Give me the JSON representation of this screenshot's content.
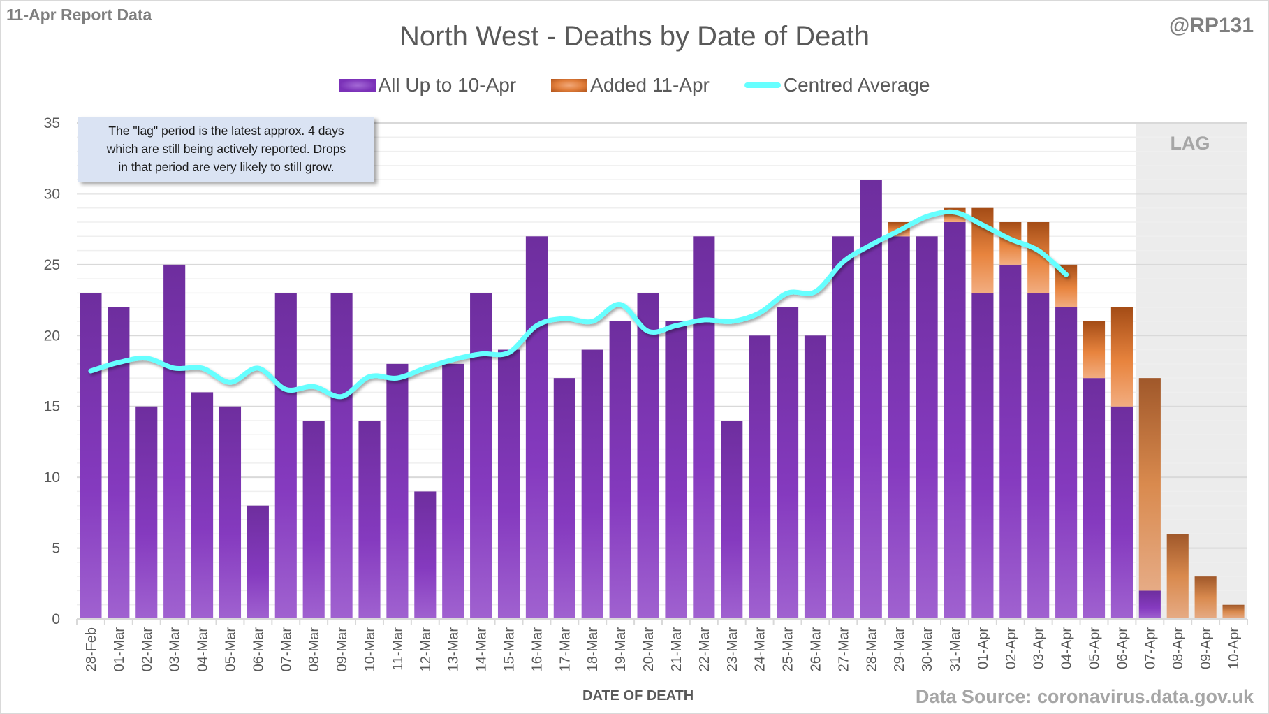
{
  "header": {
    "report_label": "11-Apr Report Data",
    "handle": "@RP131",
    "title": "North West - Deaths by Date of Death"
  },
  "legend": [
    {
      "label": "All Up to 10-Apr",
      "icon": "purple-bar-swatch"
    },
    {
      "label": "Added 11-Apr",
      "icon": "orange-bar-swatch"
    },
    {
      "label": "Centred Average",
      "icon": "cyan-line-swatch"
    }
  ],
  "callout": {
    "lines": [
      "The \"lag\" period is the latest approx. 4 days",
      "which are still being actively reported.  Drops",
      "in that period are very likely to still grow."
    ]
  },
  "lag_label": "LAG",
  "footer": {
    "xlabel": "DATE OF DEATH",
    "source": "Data Source: coronavirus.data.gov.uk"
  },
  "colors": {
    "all_up_to": "#7b31b8",
    "added": "#e07d3a",
    "average": "#66ffff",
    "lag_shade": "#ececec"
  },
  "chart_data": {
    "type": "bar",
    "stacked": true,
    "title": "North West - Deaths by Date of Death",
    "xlabel": "DATE OF DEATH",
    "ylabel": "",
    "ylim": [
      0,
      35
    ],
    "yticks": [
      0,
      5,
      10,
      15,
      20,
      25,
      30,
      35
    ],
    "grid": true,
    "legend_position": "top",
    "lag_region": [
      "07-Apr",
      "10-Apr"
    ],
    "categories": [
      "28-Feb",
      "01-Mar",
      "02-Mar",
      "03-Mar",
      "04-Mar",
      "05-Mar",
      "06-Mar",
      "07-Mar",
      "08-Mar",
      "09-Mar",
      "10-Mar",
      "11-Mar",
      "12-Mar",
      "13-Mar",
      "14-Mar",
      "15-Mar",
      "16-Mar",
      "17-Mar",
      "18-Mar",
      "19-Mar",
      "20-Mar",
      "21-Mar",
      "22-Mar",
      "23-Mar",
      "24-Mar",
      "25-Mar",
      "26-Mar",
      "27-Mar",
      "28-Mar",
      "29-Mar",
      "30-Mar",
      "31-Mar",
      "01-Apr",
      "02-Apr",
      "03-Apr",
      "04-Apr",
      "05-Apr",
      "06-Apr",
      "07-Apr",
      "08-Apr",
      "09-Apr",
      "10-Apr"
    ],
    "series": [
      {
        "name": "All Up to 10-Apr",
        "type": "bar",
        "values": [
          23,
          22,
          15,
          25,
          16,
          15,
          8,
          23,
          14,
          23,
          14,
          18,
          9,
          18,
          23,
          19,
          27,
          17,
          19,
          21,
          23,
          21,
          27,
          14,
          20,
          22,
          20,
          27,
          31,
          27,
          27,
          28,
          23,
          25,
          23,
          22,
          17,
          15,
          2,
          0,
          0,
          0
        ]
      },
      {
        "name": "Added 11-Apr",
        "type": "bar",
        "values": [
          0,
          0,
          0,
          0,
          0,
          0,
          0,
          0,
          0,
          0,
          0,
          0,
          0,
          0,
          0,
          0,
          0,
          0,
          0,
          0,
          0,
          0,
          0,
          0,
          0,
          0,
          0,
          0,
          0,
          1,
          0,
          1,
          6,
          3,
          5,
          3,
          4,
          7,
          15,
          6,
          3,
          1
        ]
      },
      {
        "name": "Centred Average",
        "type": "line",
        "values": [
          17.5,
          18.1,
          18.4,
          17.7,
          17.7,
          16.7,
          17.7,
          16.2,
          16.4,
          15.7,
          17.1,
          17.0,
          17.7,
          18.3,
          18.7,
          18.8,
          20.7,
          21.2,
          21.0,
          22.2,
          20.3,
          20.7,
          21.1,
          21.0,
          21.6,
          23.0,
          23.1,
          25.2,
          26.4,
          27.4,
          28.4,
          28.7,
          27.8,
          26.8,
          26.0,
          24.3,
          null,
          null,
          null,
          null,
          null,
          null
        ]
      }
    ]
  }
}
